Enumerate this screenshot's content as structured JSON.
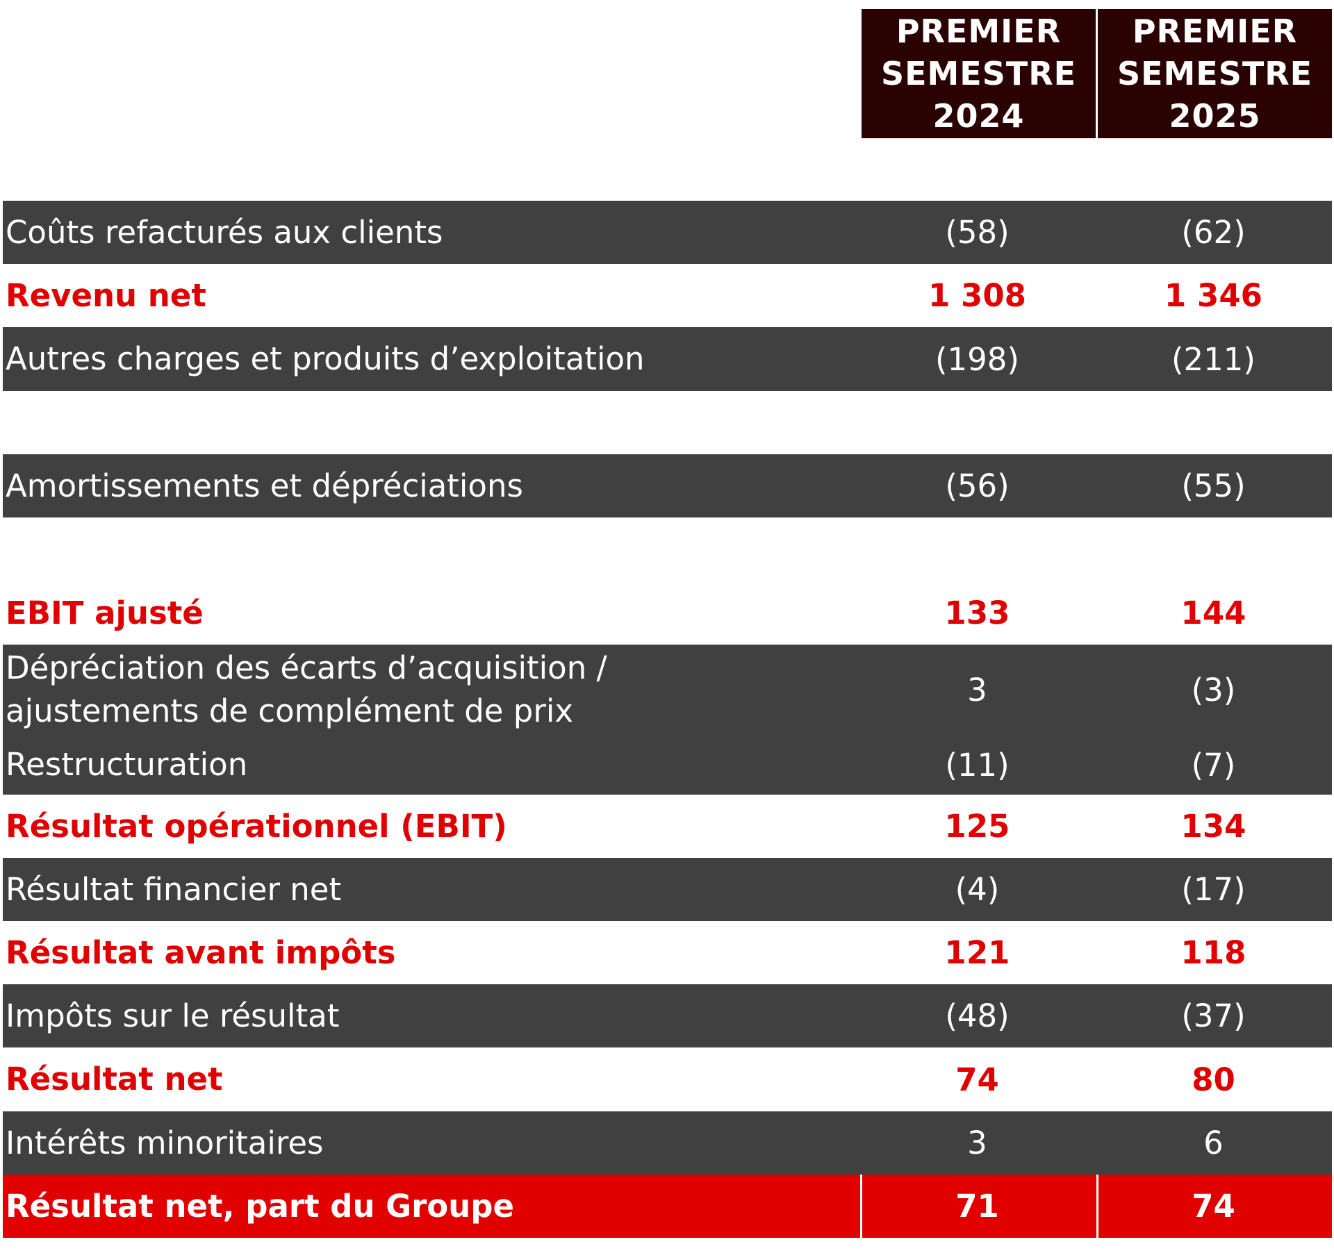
{
  "header": {
    "col1": [
      "PREMIER",
      "SEMESTRE",
      "2024"
    ],
    "col2": [
      "PREMIER",
      "SEMESTRE",
      "2025"
    ]
  },
  "rows": [
    {
      "label": "Coûts refacturés aux clients",
      "v2024": "(58)",
      "v2025": "(62)"
    },
    {
      "label": "Revenu net",
      "v2024": "1 308",
      "v2025": "1 346"
    },
    {
      "label": "Autres charges et produits d’exploitation",
      "v2024": "(198)",
      "v2025": "(211)"
    },
    {
      "label": "Amortissements et dépréciations",
      "v2024": "(56)",
      "v2025": "(55)"
    },
    {
      "label": "EBIT ajusté",
      "v2024": "133",
      "v2025": "144"
    },
    {
      "label_lines": [
        "Dépréciation des écarts d’acquisition /",
        "ajustements de complément de prix"
      ],
      "v2024": "3",
      "v2025": "(3)"
    },
    {
      "label": "Restructuration",
      "v2024": "(11)",
      "v2025": "(7)"
    },
    {
      "label": "Résultat opérationnel (EBIT)",
      "v2024": "125",
      "v2025": "134"
    },
    {
      "label": "Résultat financier net",
      "v2024": "(4)",
      "v2025": "(17)"
    },
    {
      "label": "Résultat avant impôts",
      "v2024": "121",
      "v2025": "118"
    },
    {
      "label": "Impôts sur le résultat",
      "v2024": "(48)",
      "v2025": "(37)"
    },
    {
      "label": "Résultat net",
      "v2024": "74",
      "v2025": "80"
    },
    {
      "label": "Intérêts minoritaires",
      "v2024": "3",
      "v2025": "6"
    },
    {
      "label": "Résultat net, part du Groupe",
      "v2024": "71",
      "v2025": "74"
    }
  ],
  "colors": {
    "header_bg": "#2a0202",
    "dark_row_bg": "#404040",
    "accent_red": "#e00000",
    "text_white": "#ffffff"
  }
}
